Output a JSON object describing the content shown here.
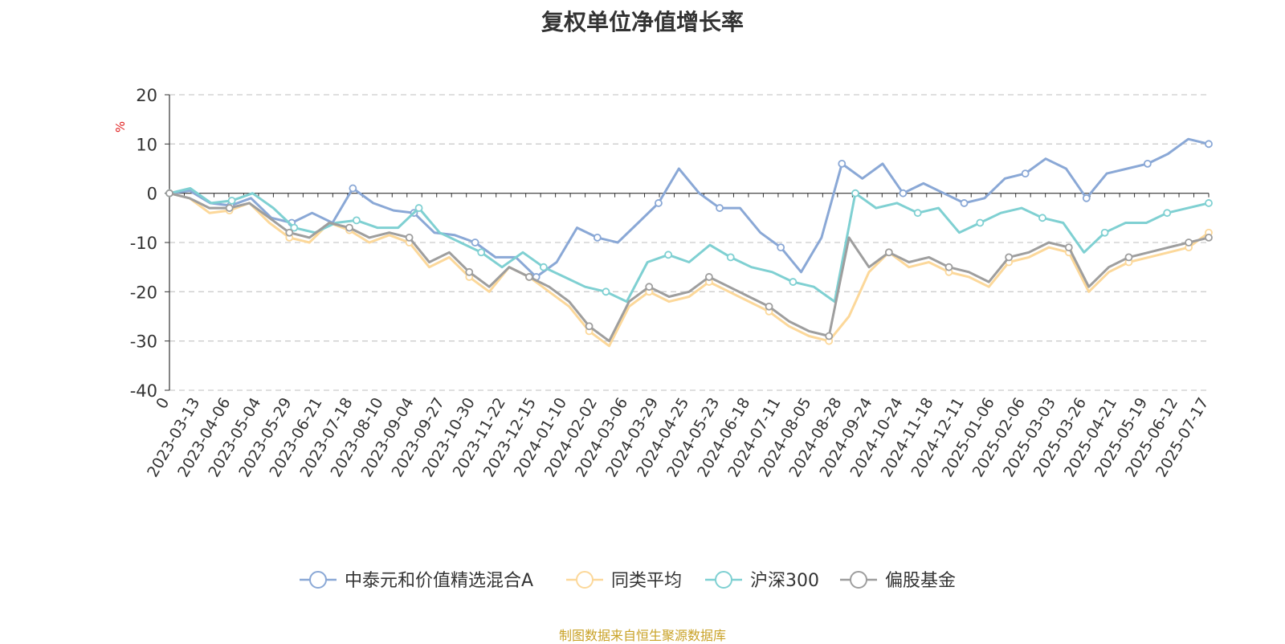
{
  "page": {
    "title": "复权单位净值增长率",
    "source": "制图数据来自恒生聚源数据库"
  },
  "chart_data": {
    "type": "line",
    "title": "复权单位净值增长率",
    "ylabel": "%",
    "ylim": [
      -40,
      20
    ],
    "yticks": [
      20,
      10,
      0,
      -10,
      -20,
      -30,
      -40
    ],
    "xtick_labels": [
      "0",
      "2023-03-13",
      "2023-04-06",
      "2023-05-04",
      "2023-05-29",
      "2023-06-21",
      "2023-07-18",
      "2023-08-10",
      "2023-09-04",
      "2023-09-27",
      "2023-10-30",
      "2023-11-22",
      "2023-12-15",
      "2024-01-10",
      "2024-02-02",
      "2024-03-06",
      "2024-03-29",
      "2024-04-25",
      "2024-05-23",
      "2024-06-18",
      "2024-07-11",
      "2024-08-05",
      "2024-08-28",
      "2024-09-24",
      "2024-10-24",
      "2024-11-18",
      "2024-12-11",
      "2025-01-06",
      "2025-02-06",
      "2025-03-03",
      "2025-03-26",
      "2025-04-21",
      "2025-05-19",
      "2025-06-12",
      "2025-07-17"
    ],
    "grid": true,
    "legend_position": "bottom-center",
    "series": [
      {
        "name": "中泰元和价值精选混合A",
        "color": "#8aa8d6",
        "values": [
          0,
          0.5,
          -2,
          -2.5,
          -1,
          -5,
          -6,
          -4,
          -6,
          1,
          -2,
          -3.5,
          -4,
          -8,
          -8.5,
          -10,
          -13,
          -13,
          -17,
          -14,
          -7,
          -9,
          -10,
          -6,
          -2,
          5,
          0,
          -3,
          -3,
          -8,
          -11,
          -16,
          -9,
          6,
          3,
          6,
          0,
          2,
          0,
          -2,
          -1,
          3,
          4,
          7,
          5,
          -1,
          4,
          5,
          6,
          8,
          11,
          10
        ]
      },
      {
        "name": "同类平均",
        "color": "#fcd89a",
        "values": [
          0,
          -1,
          -4,
          -3.5,
          -2,
          -6,
          -9,
          -10,
          -6,
          -7.5,
          -10,
          -8.5,
          -10,
          -15,
          -13,
          -17,
          -20,
          -15,
          -17,
          -20,
          -23,
          -28,
          -31,
          -23,
          -20,
          -22,
          -21,
          -18,
          -20,
          -22,
          -24,
          -27,
          -29,
          -30,
          -25,
          -16,
          -12,
          -15,
          -14,
          -16,
          -17,
          -19,
          -14,
          -13,
          -11,
          -12,
          -20,
          -16,
          -14,
          -13,
          -12,
          -11,
          -8
        ]
      },
      {
        "name": "沪深300",
        "color": "#7fd0d2",
        "values": [
          0,
          1,
          -2,
          -1.5,
          0,
          -3,
          -7,
          -8,
          -6,
          -5.5,
          -7,
          -7,
          -3,
          -8,
          -10,
          -12,
          -15,
          -12,
          -15,
          -17,
          -19,
          -20,
          -22,
          -14,
          -12.5,
          -14,
          -10.5,
          -13,
          -15,
          -16,
          -18,
          -19,
          -22,
          0,
          -3,
          -2,
          -4,
          -3,
          -8,
          -6,
          -4,
          -3,
          -5,
          -6,
          -12,
          -8,
          -6,
          -6,
          -4,
          -3,
          -2
        ]
      },
      {
        "name": "偏股基金",
        "color": "#9e9e9e",
        "values": [
          0,
          -1,
          -3,
          -3,
          -2,
          -5,
          -8,
          -9,
          -6,
          -7,
          -9,
          -8,
          -9,
          -14,
          -12,
          -16,
          -19,
          -15,
          -17,
          -19,
          -22,
          -27,
          -30,
          -22,
          -19,
          -21,
          -20,
          -17,
          -19,
          -21,
          -23,
          -26,
          -28,
          -29,
          -9,
          -15,
          -12,
          -14,
          -13,
          -15,
          -16,
          -18,
          -13,
          -12,
          -10,
          -11,
          -19,
          -15,
          -13,
          -12,
          -11,
          -10,
          -9
        ]
      }
    ]
  }
}
